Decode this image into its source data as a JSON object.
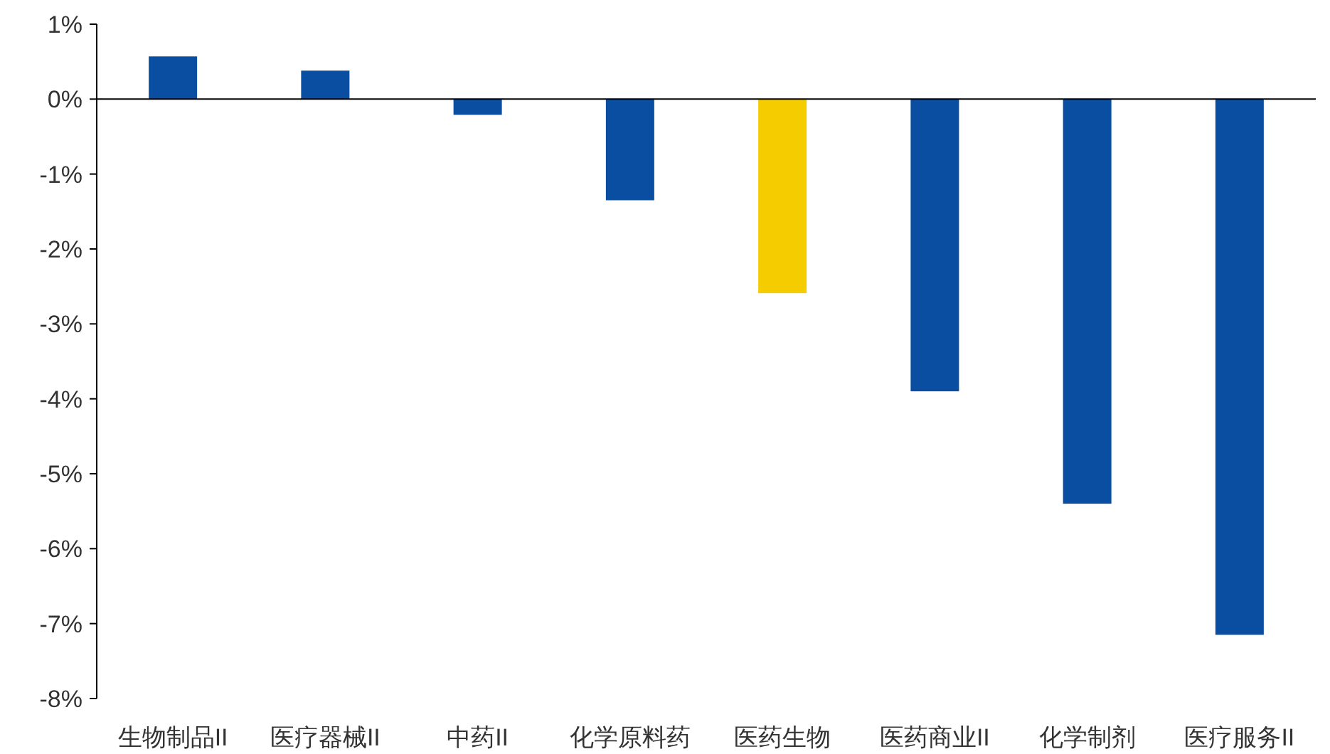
{
  "chart_data": {
    "type": "bar",
    "categories": [
      "生物制品II",
      "医疗器械II",
      "中药II",
      "化学原料药",
      "医药生物",
      "医药商业II",
      "化学制剂",
      "医疗服务II"
    ],
    "values": [
      0.57,
      0.38,
      -0.21,
      -1.35,
      -2.59,
      -3.9,
      -5.4,
      -7.15
    ],
    "colors": [
      "#0a4ea2",
      "#0a4ea2",
      "#0a4ea2",
      "#0a4ea2",
      "#f5cc00",
      "#0a4ea2",
      "#0a4ea2",
      "#0a4ea2"
    ],
    "ylim": [
      -8,
      1
    ],
    "yticks": [
      {
        "value": 1,
        "label": "1%"
      },
      {
        "value": 0,
        "label": "0%"
      },
      {
        "value": -1,
        "label": "-1%"
      },
      {
        "value": -2,
        "label": "-2%"
      },
      {
        "value": -3,
        "label": "-3%"
      },
      {
        "value": -4,
        "label": "-4%"
      },
      {
        "value": -5,
        "label": "-5%"
      },
      {
        "value": -6,
        "label": "-6%"
      },
      {
        "value": -7,
        "label": "-7%"
      },
      {
        "value": -8,
        "label": "-8%"
      }
    ]
  }
}
